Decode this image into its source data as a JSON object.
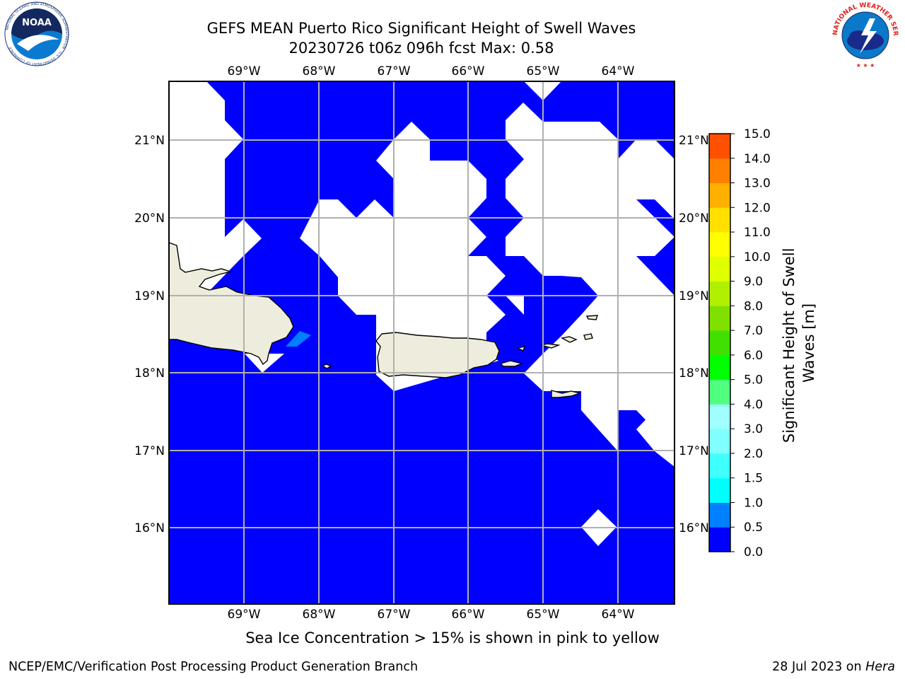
{
  "header": {
    "title_line1": "GEFS MEAN Puerto Rico Significant Height of Swell Waves",
    "title_line2": "20230726 t06z 096h fcst   Max: 0.58"
  },
  "logos": {
    "left": "NOAA",
    "left_ring": "NATIONAL OCEANIC AND ATMOSPHERIC ADMINISTRATION · U.S. DEPARTMENT OF COMMERCE",
    "right_ring": "NATIONAL WEATHER SERVICE"
  },
  "map": {
    "lon_labels": [
      "69°W",
      "68°W",
      "67°W",
      "66°W",
      "65°W",
      "64°W"
    ],
    "lat_labels": [
      "21°N",
      "20°N",
      "19°N",
      "18°N",
      "17°N",
      "16°N"
    ],
    "ocean_color": "#0000ff",
    "land_color": "#eeecdc",
    "no_data_color": "#ffffff"
  },
  "colorbar": {
    "label": "Significant Height of Swell Waves [m]",
    "label_line1": "Significant Height of Swell",
    "label_line2": "Waves [m]",
    "ticks": [
      "15.0",
      "14.0",
      "13.0",
      "12.0",
      "11.0",
      "10.0",
      "9.0",
      "8.0",
      "7.0",
      "6.0",
      "5.0",
      "4.0",
      "3.0",
      "2.0",
      "1.5",
      "1.0",
      "0.5",
      "0.0"
    ],
    "colors": [
      "#0000ff",
      "#0080ff",
      "#00ffff",
      "#40ffff",
      "#80ffff",
      "#a0ffff",
      "#50ff80",
      "#00ff00",
      "#40e000",
      "#80e000",
      "#b0f000",
      "#e0ff00",
      "#ffff00",
      "#ffe000",
      "#ffb000",
      "#ff8000",
      "#ff5000",
      "#ff2000",
      "#ff0000"
    ]
  },
  "caption": "Sea Ice Concentration > 15% is shown in pink to yellow",
  "footer": {
    "left": "NCEP/EMC/Verification Post Processing Product Generation Branch",
    "right_date": "28 Jul 2023 on ",
    "right_host": "Hera"
  }
}
